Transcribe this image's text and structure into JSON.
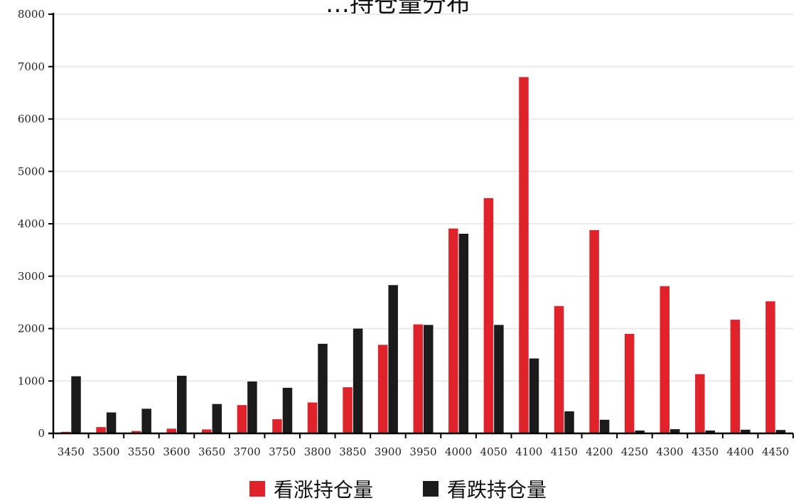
{
  "chart_data": {
    "type": "bar",
    "title": "…持仓量分布",
    "categories": [
      "3450",
      "3500",
      "3550",
      "3600",
      "3650",
      "3700",
      "3750",
      "3800",
      "3850",
      "3900",
      "3950",
      "4000",
      "4050",
      "4100",
      "4150",
      "4200",
      "4250",
      "4300",
      "4350",
      "4400",
      "4450"
    ],
    "series": [
      {
        "name": "看涨持仓量",
        "color": "#e0222b",
        "values": [
          30,
          120,
          45,
          90,
          75,
          540,
          270,
          590,
          880,
          1690,
          2080,
          3910,
          4490,
          6800,
          2430,
          3880,
          1900,
          2810,
          1130,
          2170,
          2520
        ]
      },
      {
        "name": "看跌持仓量",
        "color": "#1b1b1b",
        "values": [
          1090,
          400,
          470,
          1100,
          560,
          990,
          870,
          1710,
          2000,
          2830,
          2070,
          3810,
          2070,
          1430,
          420,
          260,
          55,
          80,
          55,
          70,
          65
        ]
      }
    ],
    "yticks": [
      0,
      1000,
      2000,
      3000,
      4000,
      5000,
      6000,
      7000,
      8000
    ],
    "ylim": [
      0,
      8000
    ],
    "grid": true,
    "legend_position": "bottom"
  }
}
